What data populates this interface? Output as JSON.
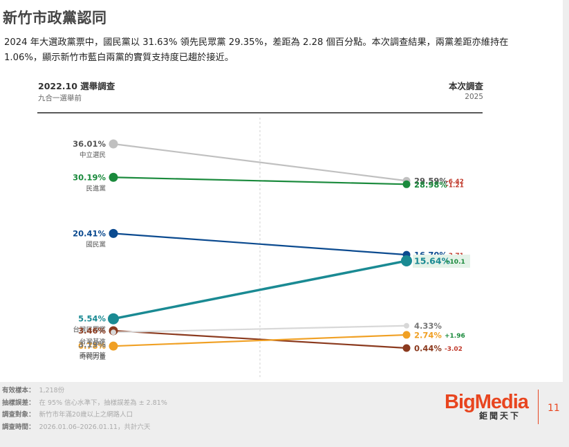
{
  "page": {
    "title": "新竹市政黨認同",
    "description": "2024 年大選政黨票中，國民黨以 31.63% 領先民眾黨 29.35%，差距為 2.28 個百分點。本次調查結果，兩黨差距亦維持在 1.06%，顯示新竹市藍白兩黨的實質支持度已趨於接近。",
    "page_number": "11"
  },
  "columns": {
    "left_title": "2022.10 選舉調查",
    "left_sub": "九合一選舉前",
    "right_title": "本次調查",
    "right_sub": "2025"
  },
  "chart_data": {
    "type": "line",
    "x": [
      "2022.10 選舉調查",
      "本次調查"
    ],
    "ylim": [
      0,
      40
    ],
    "series": [
      {
        "name": "中立選民",
        "values": [
          36.01,
          29.59
        ],
        "start_label": "36.01%",
        "end_label": "29.59%",
        "change": "-6.42",
        "color": "#c0c0c0",
        "label_color": "#555555",
        "change_color": "#c0392b",
        "emphasis": false
      },
      {
        "name": "民進黨",
        "values": [
          30.19,
          28.98
        ],
        "start_label": "30.19%",
        "end_label": "28.98%",
        "change": "-1.21",
        "color": "#1a8a3c",
        "label_color": "#1a8a3c",
        "change_color": "#c0392b",
        "emphasis": false
      },
      {
        "name": "國民黨",
        "values": [
          20.41,
          16.7
        ],
        "start_label": "20.41%",
        "end_label": "16.70%",
        "change": "-3.71",
        "color": "#0b4a8f",
        "label_color": "#0b4a8f",
        "change_color": "#c0392b",
        "emphasis": false
      },
      {
        "name": "台灣民眾黨",
        "values": [
          5.54,
          15.64
        ],
        "start_label": "5.54%",
        "end_label": "15.64%",
        "change": "+10.1",
        "color": "#1a8a93",
        "label_color": "#1a8a93",
        "change_color": "#1a8a3c",
        "emphasis": true
      },
      {
        "name": "台灣基進",
        "values": [
          3.46,
          0.44
        ],
        "start_label": "3.46%",
        "end_label": "0.44%",
        "change": "-3.02",
        "color": "#8b3a1e",
        "label_color": "#8b3a1e",
        "change_color": "#c0392b",
        "emphasis": false
      },
      {
        "name": "時代力量",
        "values": [
          0.78,
          2.74
        ],
        "start_label": "0.78%",
        "end_label": "2.74%",
        "change": "+1.96",
        "color": "#f0a024",
        "label_color": "#f0a024",
        "change_color": "#1a8a3c",
        "emphasis": false
      },
      {
        "name": "不願回答",
        "values": [
          3.19,
          4.33
        ],
        "start_label": "3.19%",
        "end_label": "4.33%",
        "change": "",
        "color": "#d8d8d8",
        "label_color": "#777777",
        "change_color": "#777777",
        "emphasis": false
      }
    ]
  },
  "meta": [
    {
      "key": "有效樣本：",
      "value": "1,218份"
    },
    {
      "key": "抽樣誤差：",
      "value": "在 95% 信心水準下，抽樣誤差為 ± 2.81%"
    },
    {
      "key": "調查對象：",
      "value": "新竹市年滿20歲以上之網路人口"
    },
    {
      "key": "調查時間：",
      "value": "2026.01.06–2026.01.11，共計六天"
    }
  ],
  "logo": {
    "main": "BigMedia",
    "sub": "鉅聞天下"
  }
}
